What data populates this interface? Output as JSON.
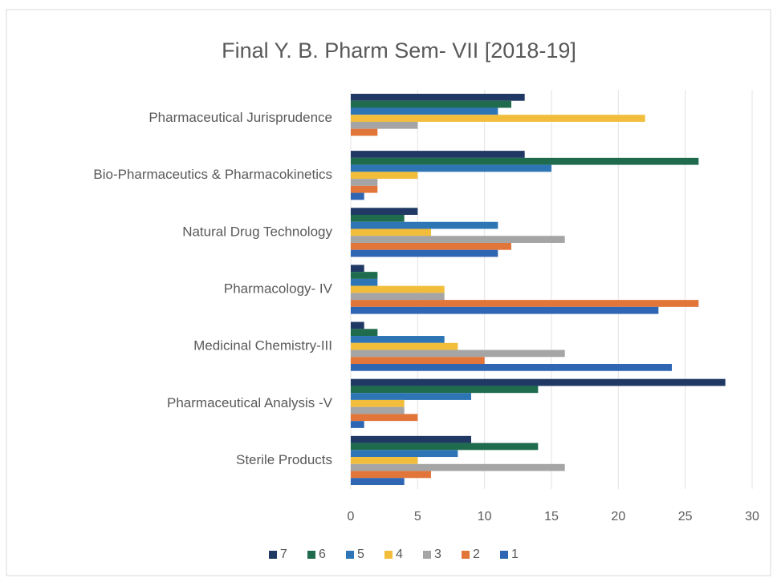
{
  "chart_data": {
    "type": "hbar",
    "title": "Final Y. B. Pharm Sem- VII [2018-19]",
    "categories": [
      "Pharmaceutical Jurisprudence",
      "Bio-Pharmaceutics & Pharmacokinetics",
      "Natural Drug Technology",
      "Pharmacology- IV",
      "Medicinal Chemistry-III",
      "Pharmaceutical Analysis -V",
      "Sterile Products"
    ],
    "series": [
      {
        "name": "7",
        "color": "#203864",
        "values": [
          13,
          13,
          5,
          1,
          1,
          28,
          9
        ]
      },
      {
        "name": "6",
        "color": "#1e6b4e",
        "values": [
          12,
          26,
          4,
          2,
          2,
          14,
          14
        ]
      },
      {
        "name": "5",
        "color": "#2e75b6",
        "values": [
          11,
          15,
          11,
          2,
          7,
          9,
          8
        ]
      },
      {
        "name": "4",
        "color": "#f2bd3a",
        "values": [
          22,
          5,
          6,
          7,
          8,
          4,
          5
        ]
      },
      {
        "name": "3",
        "color": "#a5a5a5",
        "values": [
          5,
          2,
          16,
          7,
          16,
          4,
          16
        ]
      },
      {
        "name": "2",
        "color": "#e2763a",
        "values": [
          2,
          2,
          12,
          26,
          10,
          5,
          6
        ]
      },
      {
        "name": "1",
        "color": "#2f66b3",
        "values": [
          0,
          1,
          11,
          23,
          24,
          1,
          4
        ]
      }
    ],
    "xlim": [
      0,
      30
    ],
    "xticks": [
      0,
      5,
      10,
      15,
      20,
      25,
      30
    ],
    "grid": true,
    "legend": "bottom"
  }
}
